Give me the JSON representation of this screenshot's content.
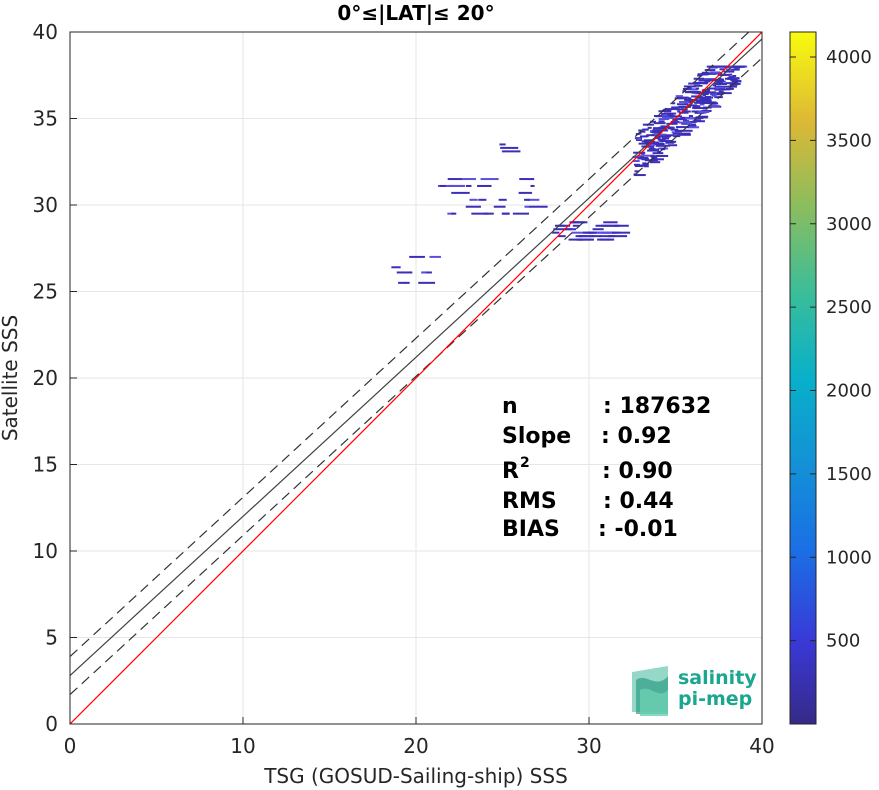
{
  "chart_data": {
    "type": "scatter",
    "title": "0°≤|LAT|≤ 20°",
    "xlabel": "TSG (GOSUD-Sailing-ship) SSS",
    "ylabel": "Satellite SSS",
    "xlim": [
      0,
      40
    ],
    "ylim": [
      0,
      40
    ],
    "xticks": [
      "0",
      "10",
      "20",
      "30",
      "40"
    ],
    "yticks": [
      "0",
      "5",
      "10",
      "15",
      "20",
      "25",
      "30",
      "35",
      "40"
    ],
    "grid": true,
    "stats": [
      {
        "label": "n",
        "value": ": 187632"
      },
      {
        "label": "Slope",
        "value": ": 0.92"
      },
      {
        "label": "R",
        "sup": "2",
        "value": ": 0.90"
      },
      {
        "label": "RMS",
        "value": ": 0.44"
      },
      {
        "label": "BIAS",
        "value": ": -0.01"
      }
    ],
    "lines": {
      "one_to_one": {
        "slope": 1,
        "intercept": 0,
        "color": "#ff0000"
      },
      "regression": {
        "slope": 0.92,
        "intercept": 2.8,
        "color": "#404040"
      },
      "upper_band": {
        "slope": 0.92,
        "intercept": 3.9,
        "style": "dashed"
      },
      "lower_band": {
        "slope": 0.92,
        "intercept": 1.7,
        "style": "dashed"
      }
    },
    "density_clusters": [
      {
        "x": [
          32.5,
          38.5
        ],
        "y": [
          31.5,
          38.0
        ]
      },
      {
        "x": [
          27.5,
          31.5
        ],
        "y": [
          28.0,
          29.0
        ]
      },
      {
        "x": [
          21.0,
          27.0
        ],
        "y": [
          29.5,
          31.5
        ]
      },
      {
        "x": [
          18.5,
          21.0
        ],
        "y": [
          25.5,
          27.0
        ]
      },
      {
        "x": [
          24.5,
          25.0
        ],
        "y": [
          33.0,
          33.5
        ]
      }
    ],
    "colorbar": {
      "min": 0,
      "max": 4150,
      "ticks": [
        "500",
        "1000",
        "1500",
        "2000",
        "2500",
        "3000",
        "3500",
        "4000"
      ],
      "colormap": "parula"
    }
  },
  "logo": {
    "line1": "salinity",
    "line2": "pi-mep"
  }
}
